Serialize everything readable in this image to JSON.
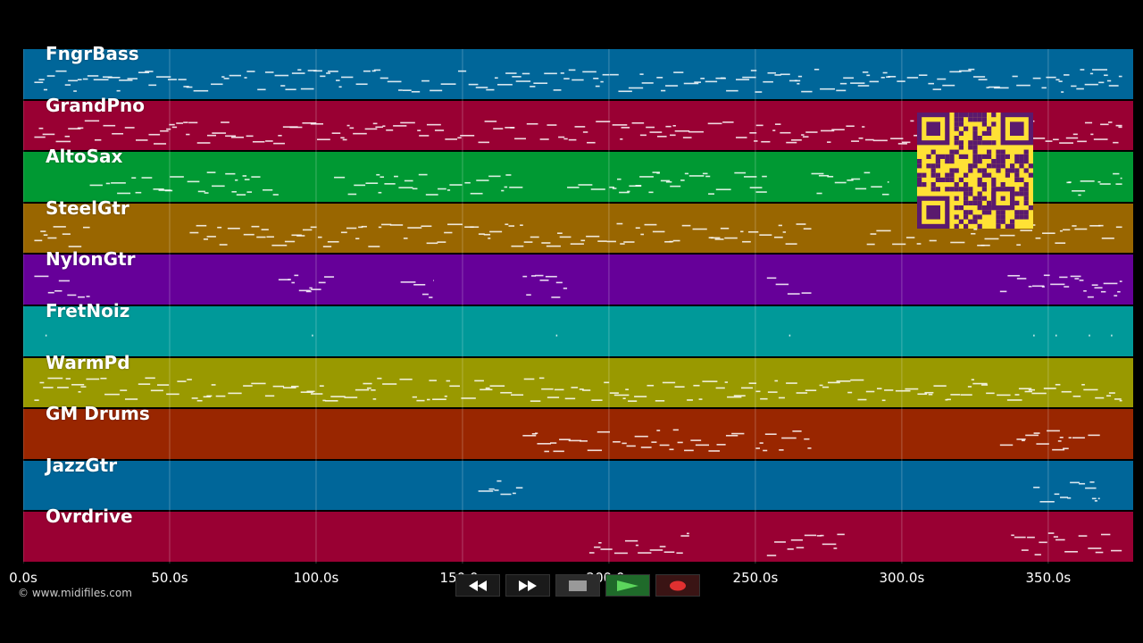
{
  "tracks": [
    {
      "name": "FngrBass",
      "color": "#006699"
    },
    {
      "name": "GrandPno",
      "color": "#990033"
    },
    {
      "name": "AltoSax",
      "color": "#009933"
    },
    {
      "name": "SteelGtr",
      "color": "#996600"
    },
    {
      "name": "NylonGtr",
      "color": "#660099"
    },
    {
      "name": "FretNoiz",
      "color": "#009999"
    },
    {
      "name": "WarmPd",
      "color": "#999900"
    },
    {
      "name": "GM Drums",
      "color": "#992600"
    },
    {
      "name": "JazzGtr",
      "color": "#006699"
    },
    {
      "name": "Ovrdrive",
      "color": "#990033"
    }
  ],
  "timeline": {
    "max_seconds": 379,
    "ticks": [
      "0.0s",
      "50.0s",
      "100.0s",
      "150.0s",
      "200.0s",
      "250.0s",
      "300.0s",
      "350.0s"
    ],
    "tick_values": [
      0,
      50,
      100,
      150,
      200,
      250,
      300,
      350
    ]
  },
  "copyright": "© www.midifiles.com",
  "transport": [
    {
      "name": "rewind-button",
      "icon": "rewind-icon"
    },
    {
      "name": "fast-forward-button",
      "icon": "fast-forward-icon"
    },
    {
      "name": "stop-button",
      "icon": "stop-icon"
    },
    {
      "name": "play-button",
      "icon": "play-icon"
    },
    {
      "name": "record-button",
      "icon": "record-icon"
    }
  ],
  "qr": {
    "icon": "qr-code-icon",
    "color": "#ffe135"
  }
}
